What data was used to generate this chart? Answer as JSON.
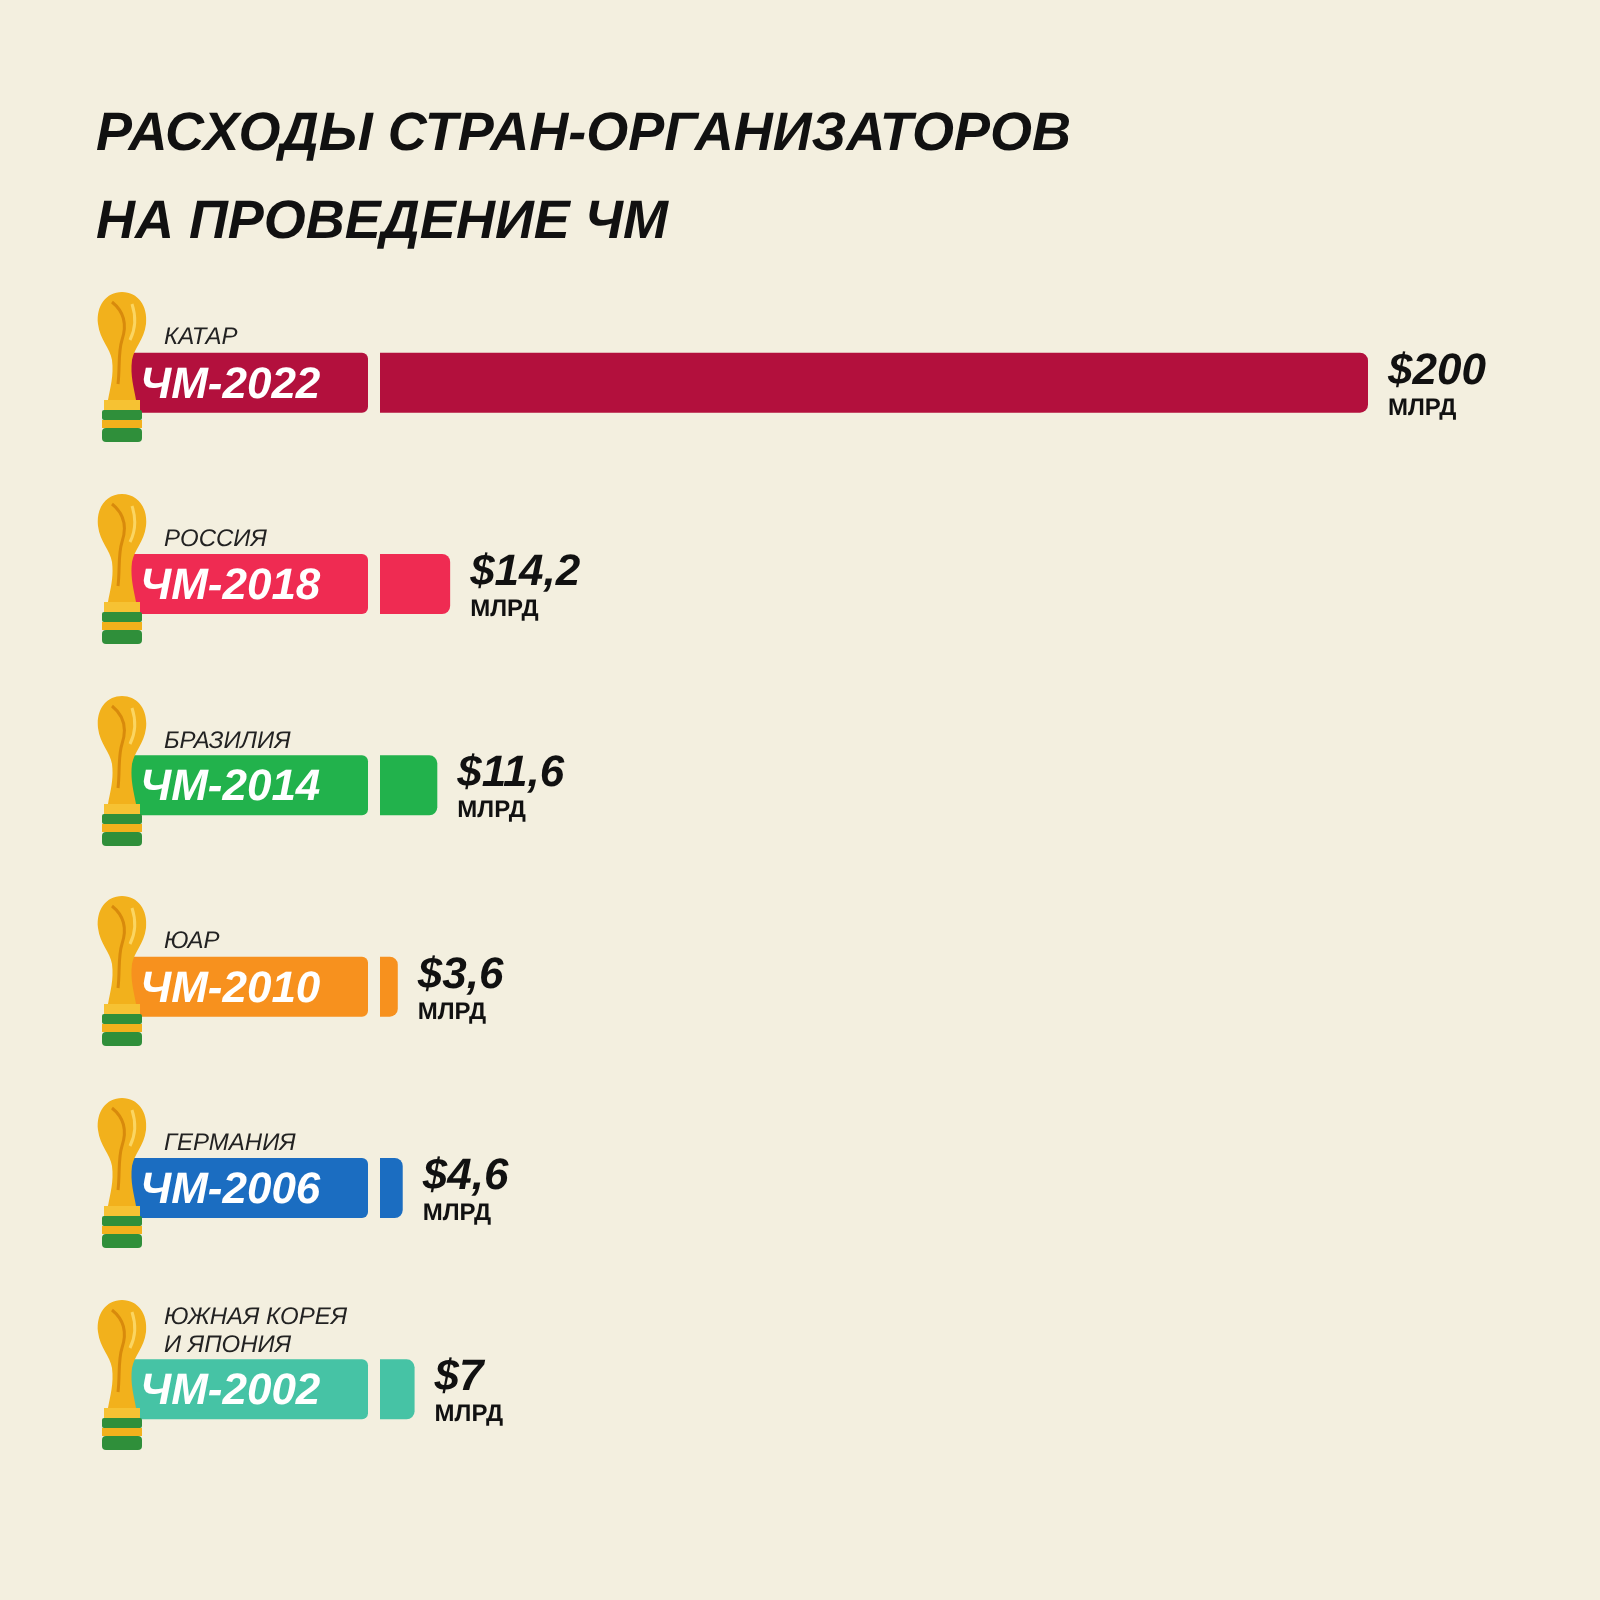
{
  "chart_data": {
    "type": "bar",
    "orientation": "horizontal",
    "title": "РАСХОДЫ СТРАН-ОРГАНИЗАТОРОВ НА ПРОВЕДЕНИЕ ЧМ",
    "categories": [
      "ЧМ-2022",
      "ЧМ-2018",
      "ЧМ-2014",
      "ЧМ-2010",
      "ЧМ-2006",
      "ЧМ-2002"
    ],
    "values": [
      200,
      14.2,
      11.6,
      3.6,
      4.6,
      7
    ],
    "colors": [
      "#b3103d",
      "#ef2b52",
      "#22b24c",
      "#f7911e",
      "#1b6dc1",
      "#46c3a5"
    ],
    "value_labels": [
      "$200 МЛРД",
      "$14,2 МЛРД",
      "$11,6 МЛРД",
      "$3,6 МЛРД",
      "$4,6 МЛРД",
      "$7 МЛРД"
    ],
    "annotations": [
      "КАТАР",
      "РОССИЯ",
      "БРАЗИЛИЯ",
      "ЮАР",
      "ГЕРМАНИЯ",
      "ЮЖНАЯ КОРЕЯ И ЯПОНИЯ"
    ]
  }
}
